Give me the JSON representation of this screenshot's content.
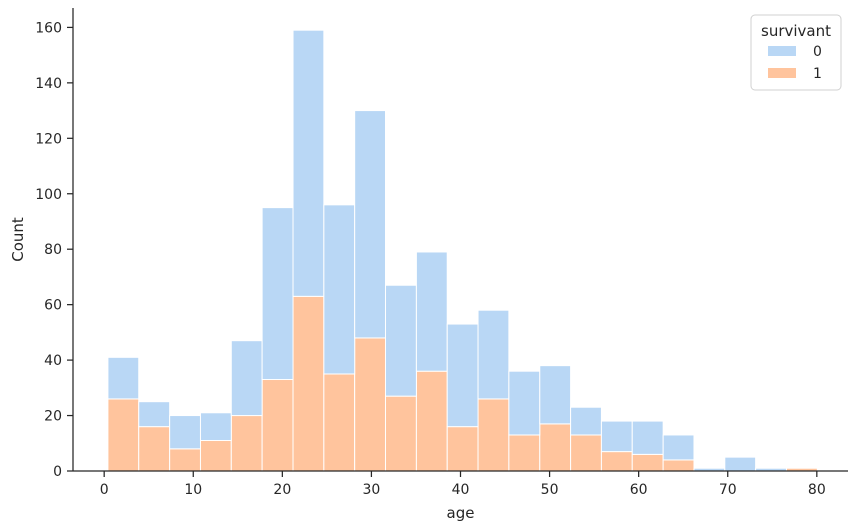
{
  "chart_data": {
    "type": "bar",
    "stacked": true,
    "xlabel": "age",
    "ylabel": "Count",
    "xlim": [
      -3.5,
      83.5
    ],
    "ylim": [
      0,
      167
    ],
    "xticks": [
      0,
      10,
      20,
      30,
      40,
      50,
      60,
      70,
      80
    ],
    "yticks": [
      0,
      20,
      40,
      60,
      80,
      100,
      120,
      140,
      160
    ],
    "grid": false,
    "legend": {
      "title": "survivant",
      "position": "top-right"
    },
    "bin_edges": [
      0.42,
      3.88,
      7.35,
      10.81,
      14.27,
      17.73,
      21.2,
      24.66,
      28.12,
      31.58,
      35.05,
      38.51,
      41.97,
      45.43,
      48.9,
      52.36,
      55.82,
      59.28,
      62.75,
      66.21,
      69.67,
      73.13,
      76.59,
      80.06
    ],
    "series": [
      {
        "name": "1",
        "color": "#ffc49d",
        "values": [
          26,
          16,
          8,
          11,
          20,
          33,
          63,
          35,
          48,
          27,
          36,
          16,
          26,
          13,
          17,
          13,
          7,
          6,
          4,
          0,
          0,
          0,
          1
        ]
      },
      {
        "name": "0",
        "color": "#b9d7f5",
        "values": [
          15,
          9,
          12,
          10,
          27,
          62,
          96,
          61,
          82,
          40,
          43,
          37,
          32,
          23,
          21,
          10,
          11,
          12,
          9,
          1,
          5,
          1,
          0
        ]
      }
    ]
  }
}
